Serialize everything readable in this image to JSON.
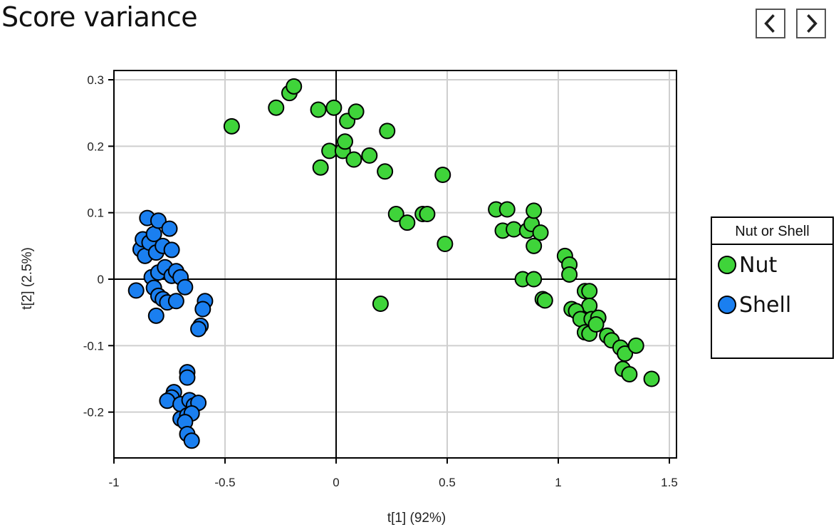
{
  "page": {
    "title": "Score variance"
  },
  "nav": {
    "prev_icon": "chevron-left-icon",
    "next_icon": "chevron-right-icon"
  },
  "legend": {
    "title": "Nut or Shell",
    "items": [
      {
        "label": "Nut",
        "color": "#3fd43a"
      },
      {
        "label": "Shell",
        "color": "#1a7ff0"
      }
    ]
  },
  "chart_data": {
    "type": "scatter",
    "title": "Score variance",
    "xlabel": "t[1] (92%)",
    "ylabel": "t[2] (2.5%)",
    "xlim": [
      -1,
      1.5
    ],
    "ylim": [
      -0.27,
      0.31
    ],
    "xticks": [
      -1,
      -0.5,
      0,
      0.5,
      1,
      1.5
    ],
    "xtick_labels": [
      "-1",
      "-0.5",
      "0",
      "0.5",
      "1",
      "1.5"
    ],
    "yticks": [
      -0.2,
      -0.1,
      0,
      0.1,
      0.2,
      0.3
    ],
    "ytick_labels": [
      "-0.2",
      "-0.1",
      "0",
      "0.1",
      "0.2",
      "0.3"
    ],
    "grid": true,
    "legend_position": "right",
    "series": [
      {
        "name": "Nut",
        "color": "#3fd43a",
        "points": [
          [
            -0.47,
            0.23
          ],
          [
            -0.27,
            0.258
          ],
          [
            -0.21,
            0.28
          ],
          [
            -0.19,
            0.29
          ],
          [
            -0.08,
            0.255
          ],
          [
            -0.01,
            0.258
          ],
          [
            0.05,
            0.238
          ],
          [
            0.09,
            0.252
          ],
          [
            -0.07,
            0.168
          ],
          [
            -0.03,
            0.193
          ],
          [
            0.03,
            0.193
          ],
          [
            0.04,
            0.207
          ],
          [
            0.08,
            0.18
          ],
          [
            0.15,
            0.186
          ],
          [
            0.23,
            0.223
          ],
          [
            0.22,
            0.162
          ],
          [
            0.27,
            0.098
          ],
          [
            0.32,
            0.085
          ],
          [
            0.39,
            0.098
          ],
          [
            0.41,
            0.098
          ],
          [
            0.48,
            0.157
          ],
          [
            0.49,
            0.053
          ],
          [
            0.2,
            -0.037
          ],
          [
            0.72,
            0.105
          ],
          [
            0.77,
            0.105
          ],
          [
            0.75,
            0.073
          ],
          [
            0.8,
            0.075
          ],
          [
            0.86,
            0.073
          ],
          [
            0.88,
            0.083
          ],
          [
            0.89,
            0.103
          ],
          [
            0.92,
            0.07
          ],
          [
            0.89,
            0.05
          ],
          [
            0.84,
            0.0
          ],
          [
            0.89,
            0.0
          ],
          [
            0.93,
            -0.03
          ],
          [
            0.94,
            -0.032
          ],
          [
            1.03,
            0.035
          ],
          [
            1.05,
            0.022
          ],
          [
            1.05,
            0.007
          ],
          [
            1.12,
            -0.018
          ],
          [
            1.14,
            -0.018
          ],
          [
            1.14,
            -0.04
          ],
          [
            1.06,
            -0.045
          ],
          [
            1.08,
            -0.048
          ],
          [
            1.1,
            -0.06
          ],
          [
            1.15,
            -0.06
          ],
          [
            1.18,
            -0.058
          ],
          [
            1.12,
            -0.08
          ],
          [
            1.14,
            -0.082
          ],
          [
            1.17,
            -0.068
          ],
          [
            1.22,
            -0.085
          ],
          [
            1.24,
            -0.092
          ],
          [
            1.28,
            -0.103
          ],
          [
            1.3,
            -0.112
          ],
          [
            1.35,
            -0.1
          ],
          [
            1.29,
            -0.135
          ],
          [
            1.32,
            -0.143
          ],
          [
            1.42,
            -0.15
          ]
        ]
      },
      {
        "name": "Shell",
        "color": "#1a7ff0",
        "points": [
          [
            -0.9,
            -0.017
          ],
          [
            -0.88,
            0.045
          ],
          [
            -0.87,
            0.06
          ],
          [
            -0.85,
            0.092
          ],
          [
            -0.86,
            0.035
          ],
          [
            -0.84,
            0.055
          ],
          [
            -0.82,
            0.068
          ],
          [
            -0.81,
            0.04
          ],
          [
            -0.8,
            0.088
          ],
          [
            -0.78,
            0.05
          ],
          [
            -0.75,
            0.076
          ],
          [
            -0.74,
            0.044
          ],
          [
            -0.83,
            0.003
          ],
          [
            -0.8,
            0.01
          ],
          [
            -0.77,
            0.018
          ],
          [
            -0.74,
            0.005
          ],
          [
            -0.72,
            0.012
          ],
          [
            -0.7,
            0.003
          ],
          [
            -0.82,
            -0.013
          ],
          [
            -0.8,
            -0.025
          ],
          [
            -0.78,
            -0.03
          ],
          [
            -0.76,
            -0.035
          ],
          [
            -0.72,
            -0.033
          ],
          [
            -0.68,
            -0.012
          ],
          [
            -0.81,
            -0.055
          ],
          [
            -0.59,
            -0.033
          ],
          [
            -0.6,
            -0.045
          ],
          [
            -0.61,
            -0.07
          ],
          [
            -0.62,
            -0.075
          ],
          [
            -0.67,
            -0.14
          ],
          [
            -0.67,
            -0.148
          ],
          [
            -0.73,
            -0.17
          ],
          [
            -0.74,
            -0.178
          ],
          [
            -0.76,
            -0.183
          ],
          [
            -0.7,
            -0.188
          ],
          [
            -0.66,
            -0.182
          ],
          [
            -0.64,
            -0.19
          ],
          [
            -0.62,
            -0.186
          ],
          [
            -0.7,
            -0.21
          ],
          [
            -0.67,
            -0.205
          ],
          [
            -0.65,
            -0.202
          ],
          [
            -0.68,
            -0.215
          ],
          [
            -0.67,
            -0.233
          ],
          [
            -0.65,
            -0.243
          ]
        ]
      }
    ]
  }
}
